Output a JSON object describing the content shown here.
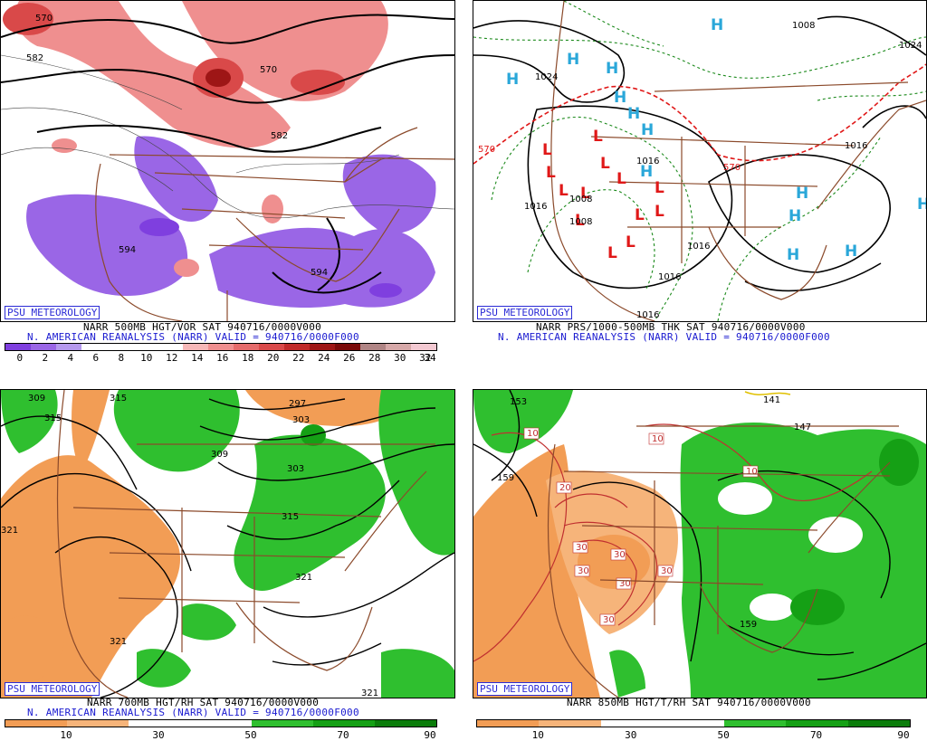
{
  "panels": [
    {
      "id": "tl",
      "badge": "PSU METEOROLOGY",
      "caption_line1": "NARR 500MB HGT/VOR SAT 940716/0000V000",
      "caption_line2": "N. AMERICAN REANALYSIS (NARR) VALID = 940716/0000F000",
      "colorbar": {
        "colors": [
          "#7f3fdf",
          "#9a66e6",
          "#b599ee",
          "#ffffff",
          "#ffffff",
          "#ffffff",
          "#ffffff",
          "#f7b8b8",
          "#ef8f8f",
          "#e56b6b",
          "#d94949",
          "#c02a2a",
          "#9e1616",
          "#7a0a0a",
          "#b08585",
          "#d6a8a8",
          "#f3c9d2"
        ],
        "labels": [
          "0",
          "2",
          "4",
          "6",
          "8",
          "10",
          "12",
          "14",
          "16",
          "18",
          "20",
          "22",
          "24",
          "26",
          "28",
          "30",
          "32",
          "34"
        ]
      },
      "contour_labels": [
        "570",
        "582",
        "570",
        "582",
        "594",
        "594"
      ]
    },
    {
      "id": "tr",
      "badge": "PSU METEOROLOGY",
      "caption_line1": "NARR PRS/1000-500MB THK SAT 940716/0000V000",
      "caption_line2": "N. AMERICAN REANALYSIS (NARR) VALID = 940716/0000F000",
      "contour_labels": [
        "1008",
        "1024",
        "1024",
        "570",
        "570",
        "1016",
        "1016",
        "1008",
        "1008",
        "1016",
        "1016",
        "1016",
        "1016"
      ],
      "high_symbol": "H",
      "low_symbol": "L"
    },
    {
      "id": "bl",
      "badge": "PSU METEOROLOGY",
      "caption_line1": "NARR 700MB HGT/RH SAT 940716/0000V000",
      "caption_line2": "N. AMERICAN REANALYSIS (NARR) VALID = 940716/0000F000",
      "colorbar": {
        "colors": [
          "#f29d55",
          "#f6b47a",
          "#ffffff",
          "#ffffff",
          "#2fbf2f",
          "#15a015",
          "#0b7d0b"
        ],
        "labels": [
          "10",
          "30",
          "50",
          "70",
          "90"
        ]
      },
      "contour_labels": [
        "309",
        "315",
        "315",
        "297",
        "303",
        "309",
        "303",
        "315",
        "321",
        "321",
        "321",
        "321"
      ]
    },
    {
      "id": "br",
      "badge": "PSU METEOROLOGY",
      "caption_line1": "NARR 850MB HGT/T/RH SAT 940716/0000V000",
      "colorbar": {
        "colors": [
          "#f29d55",
          "#f6b47a",
          "#ffffff",
          "#ffffff",
          "#2fbf2f",
          "#15a015",
          "#0b7d0b"
        ],
        "labels": [
          "10",
          "30",
          "50",
          "70",
          "90"
        ]
      },
      "contour_labels": [
        "153",
        "141",
        "147",
        "159",
        "159"
      ],
      "temp_labels": [
        "10",
        "10",
        "10",
        "20",
        "30",
        "30",
        "30",
        "30",
        "30",
        "30"
      ]
    }
  ]
}
